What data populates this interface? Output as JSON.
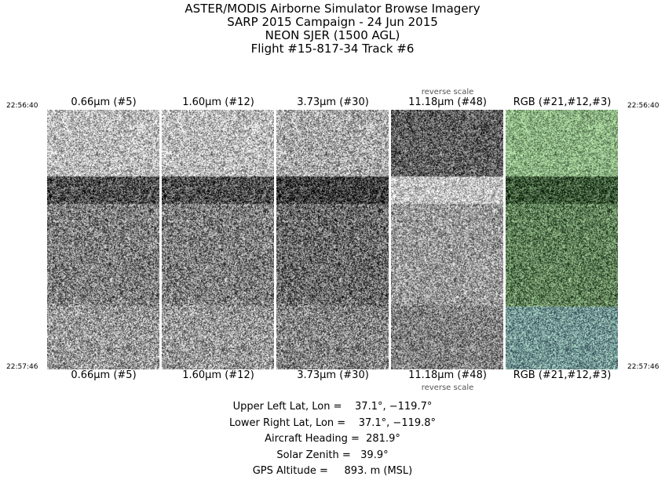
{
  "title": [
    "ASTER/MODIS Airborne Simulator Browse Imagery",
    "SARP 2015 Campaign - 24 Jun 2015",
    "NEON SJER (1500 AGL)",
    "Flight #15-817-34 Track #6"
  ],
  "panels": [
    {
      "label": "0.66μm (#5)",
      "reverse": false,
      "tint": "gray"
    },
    {
      "label": "1.60μm (#12)",
      "reverse": false,
      "tint": "gray"
    },
    {
      "label": "3.73μm (#30)",
      "reverse": false,
      "tint": "gray"
    },
    {
      "label": "11.18μm (#48)",
      "reverse": true,
      "tint": "gray"
    },
    {
      "label": "RGB (#21,#12,#3)",
      "reverse": false,
      "tint": "rgb"
    }
  ],
  "reverse_scale_label": "reverse scale",
  "time_start": "22:56:40",
  "time_end": "22:57:46",
  "info": [
    "Upper Left Lat, Lon =    37.1°, −119.7°",
    "Lower Right Lat, Lon =    37.1°, −119.8°",
    "Aircraft Heading =  281.9°",
    "Solar Zenith =   39.9°",
    "GPS Altitude =     893. m (MSL)"
  ]
}
